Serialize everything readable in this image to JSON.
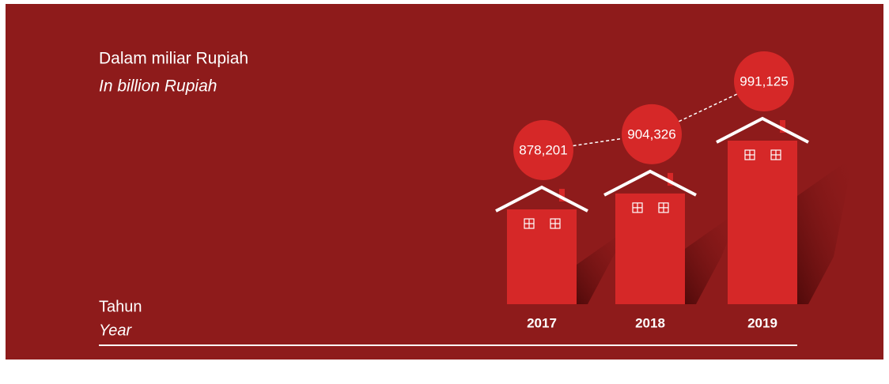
{
  "chart_data": {
    "type": "house-bar",
    "title": "Dalam miliar Rupiah",
    "subtitle": "In billion Rupiah",
    "x_label": "Tahun",
    "x_label_en": "Year",
    "categories": [
      "2017",
      "2018",
      "2019"
    ],
    "values": [
      878201,
      904326,
      991125
    ],
    "value_labels": [
      "878,201",
      "904,326",
      "991,125"
    ],
    "color": "#d62828"
  }
}
